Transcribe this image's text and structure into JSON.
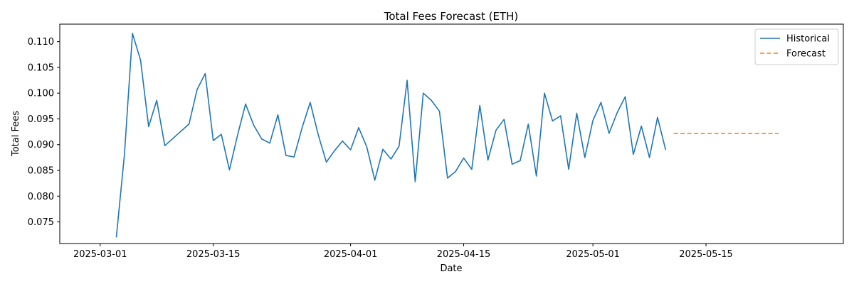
{
  "chart_data": {
    "type": "line",
    "title": "Total Fees Forecast (ETH)",
    "xlabel": "Date",
    "ylabel": "Total Fees",
    "xlim": [
      "2025-02-24",
      "2025-06-01"
    ],
    "ylim": [
      0.0708,
      0.1134
    ],
    "x_ticks": [
      "2025-03-01",
      "2025-03-15",
      "2025-04-01",
      "2025-04-15",
      "2025-05-01",
      "2025-05-15"
    ],
    "y_ticks": [
      0.075,
      0.08,
      0.085,
      0.09,
      0.095,
      0.1,
      0.105,
      0.11
    ],
    "y_tick_labels": [
      "0.075",
      "0.080",
      "0.085",
      "0.090",
      "0.095",
      "0.100",
      "0.105",
      "0.110"
    ],
    "grid": false,
    "legend": "top-right",
    "series": [
      {
        "name": "Historical",
        "color": "#1f77b4",
        "style": "solid",
        "points": [
          [
            "2025-03-03",
            0.072
          ],
          [
            "2025-03-04",
            0.088
          ],
          [
            "2025-03-05",
            0.1116
          ],
          [
            "2025-03-06",
            0.1064
          ],
          [
            "2025-03-07",
            0.0935
          ],
          [
            "2025-03-08",
            0.0986
          ],
          [
            "2025-03-09",
            0.0898
          ],
          [
            "2025-03-12",
            0.094
          ],
          [
            "2025-03-13",
            0.1007
          ],
          [
            "2025-03-14",
            0.1038
          ],
          [
            "2025-03-15",
            0.0908
          ],
          [
            "2025-03-16",
            0.092
          ],
          [
            "2025-03-17",
            0.0851
          ],
          [
            "2025-03-18",
            0.0918
          ],
          [
            "2025-03-19",
            0.0979
          ],
          [
            "2025-03-20",
            0.0938
          ],
          [
            "2025-03-21",
            0.0911
          ],
          [
            "2025-03-22",
            0.0903
          ],
          [
            "2025-03-23",
            0.0958
          ],
          [
            "2025-03-24",
            0.0879
          ],
          [
            "2025-03-25",
            0.0876
          ],
          [
            "2025-03-26",
            0.0933
          ],
          [
            "2025-03-27",
            0.0982
          ],
          [
            "2025-03-28",
            0.0919
          ],
          [
            "2025-03-29",
            0.0866
          ],
          [
            "2025-03-30",
            0.0888
          ],
          [
            "2025-03-31",
            0.0907
          ],
          [
            "2025-04-01",
            0.089
          ],
          [
            "2025-04-02",
            0.0933
          ],
          [
            "2025-04-03",
            0.0896
          ],
          [
            "2025-04-04",
            0.0831
          ],
          [
            "2025-04-05",
            0.0891
          ],
          [
            "2025-04-06",
            0.0872
          ],
          [
            "2025-04-07",
            0.0897
          ],
          [
            "2025-04-08",
            0.1025
          ],
          [
            "2025-04-09",
            0.0828
          ],
          [
            "2025-04-10",
            0.1
          ],
          [
            "2025-04-11",
            0.0986
          ],
          [
            "2025-04-12",
            0.0965
          ],
          [
            "2025-04-13",
            0.0835
          ],
          [
            "2025-04-14",
            0.0848
          ],
          [
            "2025-04-15",
            0.0874
          ],
          [
            "2025-04-16",
            0.0852
          ],
          [
            "2025-04-17",
            0.0976
          ],
          [
            "2025-04-18",
            0.087
          ],
          [
            "2025-04-19",
            0.0928
          ],
          [
            "2025-04-20",
            0.0949
          ],
          [
            "2025-04-21",
            0.0862
          ],
          [
            "2025-04-22",
            0.0869
          ],
          [
            "2025-04-23",
            0.094
          ],
          [
            "2025-04-24",
            0.0839
          ],
          [
            "2025-04-25",
            0.1
          ],
          [
            "2025-04-26",
            0.0946
          ],
          [
            "2025-04-27",
            0.0956
          ],
          [
            "2025-04-28",
            0.0852
          ],
          [
            "2025-04-29",
            0.0961
          ],
          [
            "2025-04-30",
            0.0875
          ],
          [
            "2025-05-01",
            0.0947
          ],
          [
            "2025-05-02",
            0.0982
          ],
          [
            "2025-05-03",
            0.0922
          ],
          [
            "2025-05-04",
            0.0962
          ],
          [
            "2025-05-05",
            0.0993
          ],
          [
            "2025-05-06",
            0.0881
          ],
          [
            "2025-05-07",
            0.0936
          ],
          [
            "2025-05-08",
            0.0875
          ],
          [
            "2025-05-09",
            0.0953
          ],
          [
            "2025-05-10",
            0.089
          ]
        ]
      },
      {
        "name": "Forecast",
        "color": "#ff7f0e",
        "style": "dashed",
        "points": [
          [
            "2025-05-11",
            0.0922
          ],
          [
            "2025-05-24",
            0.0922
          ]
        ]
      }
    ]
  }
}
